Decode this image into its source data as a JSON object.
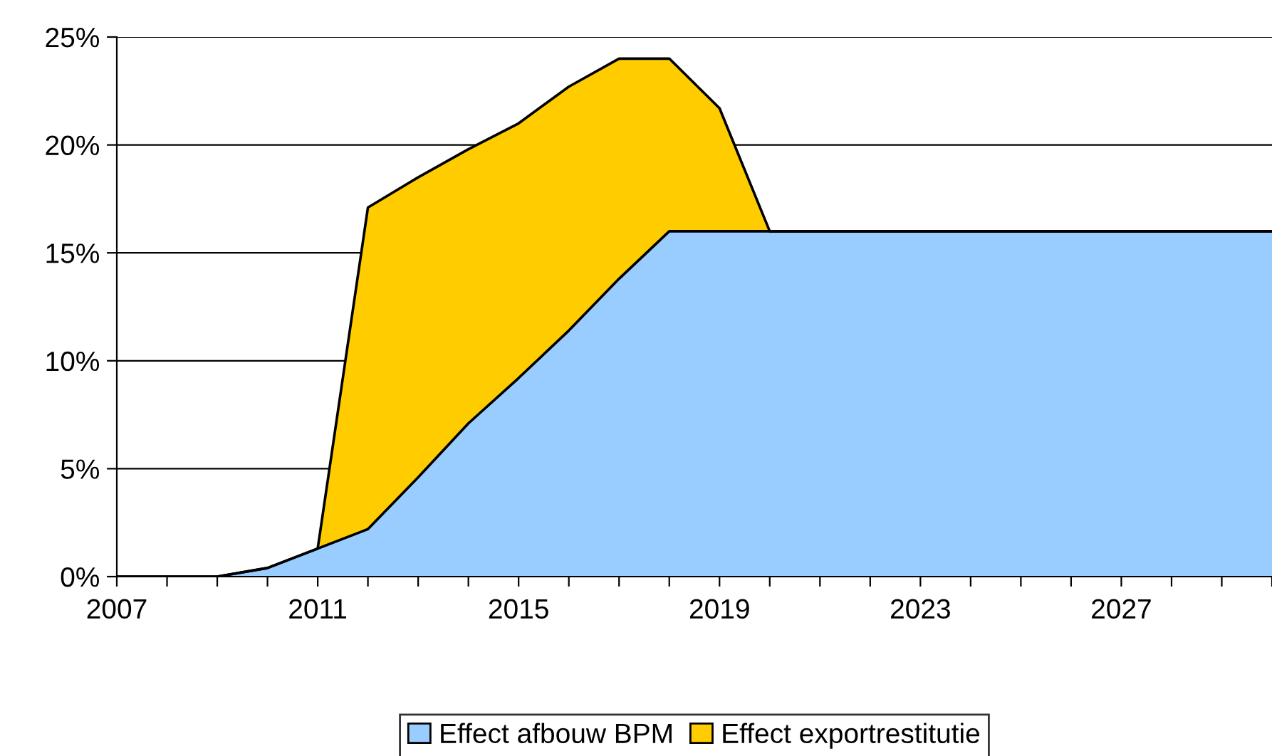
{
  "chart_data": {
    "type": "area",
    "stacked": true,
    "categories": [
      "2007",
      null,
      null,
      null,
      "2011",
      null,
      null,
      null,
      "2015",
      null,
      null,
      null,
      "2019",
      null,
      null,
      null,
      "2023",
      null,
      null,
      null,
      "2027",
      null,
      null,
      null
    ],
    "series": [
      {
        "name": "Effect afbouw BPM",
        "color": "#99ccff",
        "values": [
          0,
          0,
          0,
          0.4,
          1.3,
          2.2,
          4.6,
          7.1,
          9.2,
          11.4,
          13.8,
          16.0,
          16.0,
          16.0,
          16.0,
          16.0,
          16.0,
          16.0,
          16.0,
          16.0,
          16.0,
          16.0,
          16.0,
          16.0
        ]
      },
      {
        "name": "Effect exportrestitutie",
        "color": "#ffcc00",
        "values": [
          0,
          0,
          0,
          0,
          0,
          14.9,
          13.9,
          12.7,
          11.8,
          11.3,
          10.2,
          8.0,
          5.7,
          0,
          0,
          0,
          0,
          0,
          0,
          0,
          0,
          0,
          0,
          0
        ]
      }
    ],
    "ylim": [
      0,
      25
    ],
    "yticks": [
      {
        "value": 0,
        "label": "0%"
      },
      {
        "value": 5,
        "label": "5%"
      },
      {
        "value": 10,
        "label": "10%"
      },
      {
        "value": 15,
        "label": "15%"
      },
      {
        "value": 20,
        "label": "20%"
      },
      {
        "value": 25,
        "label": "25%"
      }
    ],
    "grid": "y",
    "legend": "bottom"
  }
}
